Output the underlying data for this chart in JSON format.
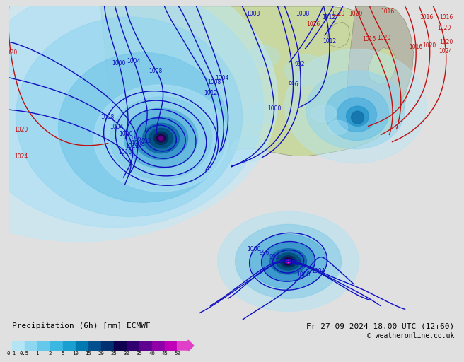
{
  "title_left": "Precipitation (6h) [mm] ECMWF",
  "title_right": "Fr 27-09-2024 18.00 UTC (12+60)",
  "copyright": "© weatheronline.co.uk",
  "colorbar_levels": [
    0.1,
    0.5,
    1,
    2,
    5,
    10,
    15,
    20,
    25,
    30,
    35,
    40,
    45,
    50
  ],
  "colorbar_colors": [
    "#b3e5f5",
    "#8dd8f0",
    "#65c8ea",
    "#3ab8e2",
    "#1aa0d0",
    "#0078b0",
    "#005090",
    "#003070",
    "#100050",
    "#300070",
    "#600090",
    "#9000a8",
    "#c000b8",
    "#e040c8"
  ],
  "ocean_color": "#c8e8f8",
  "land_color_green": "#c8d8a0",
  "land_color_grey": "#b8b8a8",
  "bottom_bg": "#e0e0e0",
  "blue_isobar": "#1010c0",
  "red_isobar": "#c01010"
}
